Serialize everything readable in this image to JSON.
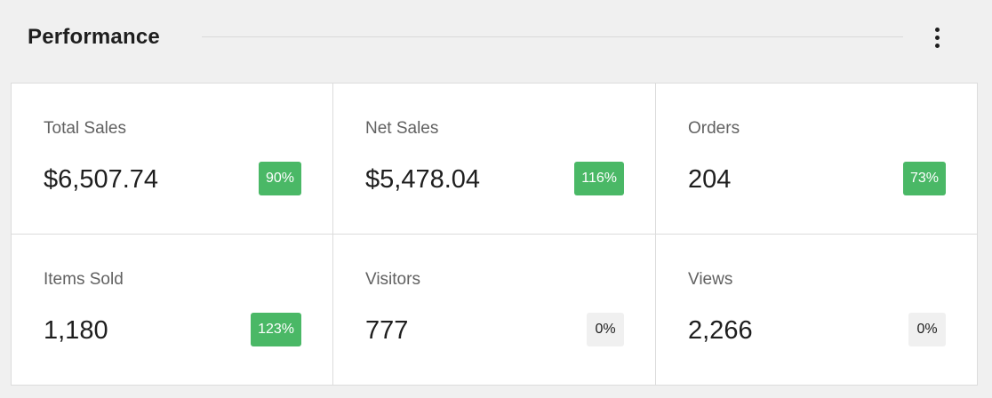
{
  "header": {
    "title": "Performance",
    "menu_icon": "more-vertical-icon"
  },
  "colors": {
    "positive_badge": "#4ab866",
    "neutral_badge": "#f0f0f0",
    "background": "#f0f0f0",
    "card": "#ffffff"
  },
  "metrics": [
    {
      "label": "Total Sales",
      "value": "$6,507.74",
      "delta": "90%",
      "trend": "up"
    },
    {
      "label": "Net Sales",
      "value": "$5,478.04",
      "delta": "116%",
      "trend": "up"
    },
    {
      "label": "Orders",
      "value": "204",
      "delta": "73%",
      "trend": "up"
    },
    {
      "label": "Items Sold",
      "value": "1,180",
      "delta": "123%",
      "trend": "up"
    },
    {
      "label": "Visitors",
      "value": "777",
      "delta": "0%",
      "trend": "flat"
    },
    {
      "label": "Views",
      "value": "2,266",
      "delta": "0%",
      "trend": "flat"
    }
  ]
}
